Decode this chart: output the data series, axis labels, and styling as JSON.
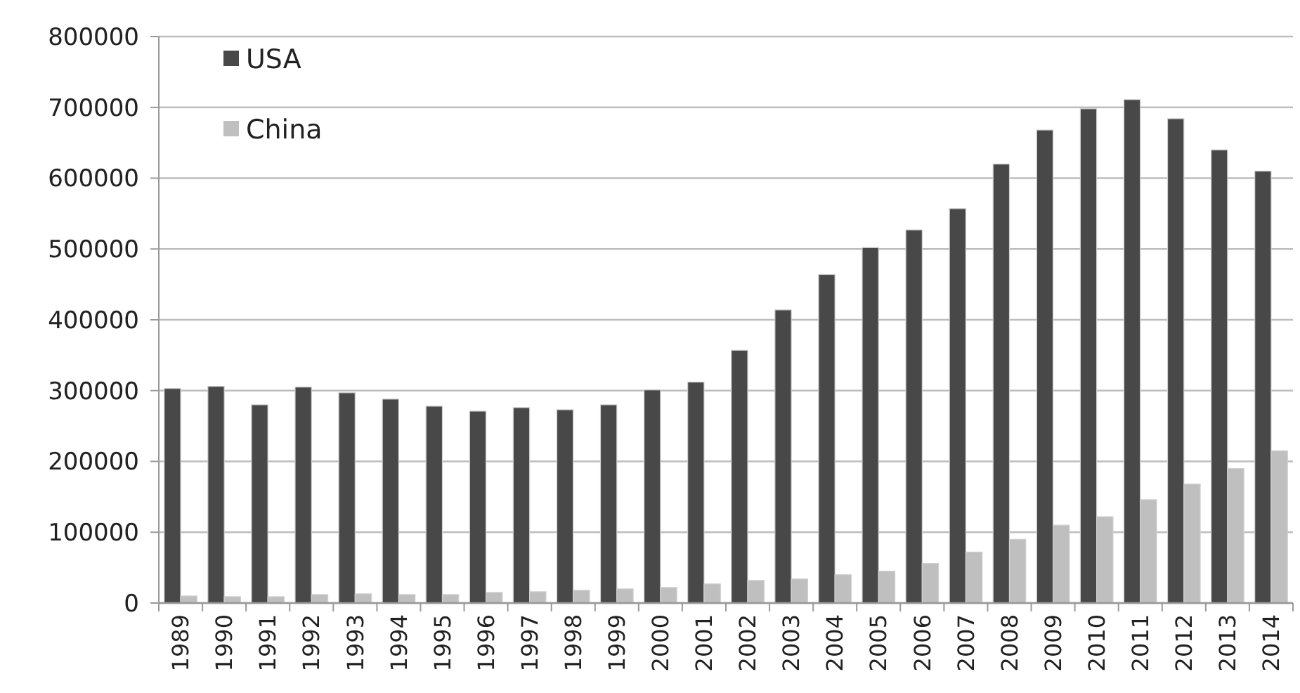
{
  "chart_data": {
    "type": "bar",
    "categories": [
      "1989",
      "1990",
      "1991",
      "1992",
      "1993",
      "1994",
      "1995",
      "1996",
      "1997",
      "1998",
      "1999",
      "2000",
      "2001",
      "2002",
      "2003",
      "2004",
      "2005",
      "2006",
      "2007",
      "2008",
      "2009",
      "2010",
      "2011",
      "2012",
      "2013",
      "2014"
    ],
    "series": [
      {
        "name": "USA",
        "color": "#484848",
        "values": [
          303000,
          306000,
          280000,
          305000,
          297000,
          288000,
          278000,
          271000,
          276000,
          273000,
          280000,
          301000,
          312000,
          357000,
          414000,
          464000,
          502000,
          527000,
          557000,
          620000,
          668000,
          698000,
          711000,
          684000,
          640000,
          610000
        ]
      },
      {
        "name": "China",
        "color": "#bfbfbf",
        "values": [
          10000,
          9000,
          9000,
          12000,
          13000,
          12000,
          12000,
          15000,
          16000,
          18000,
          20000,
          22000,
          27000,
          32000,
          34000,
          40000,
          45000,
          56000,
          72000,
          90000,
          110000,
          122000,
          146000,
          168000,
          190000,
          215000
        ]
      }
    ],
    "ylim": [
      0,
      800000
    ],
    "yticks": [
      0,
      100000,
      200000,
      300000,
      400000,
      500000,
      600000,
      700000,
      800000
    ],
    "grid": "y",
    "legend": "top left"
  }
}
